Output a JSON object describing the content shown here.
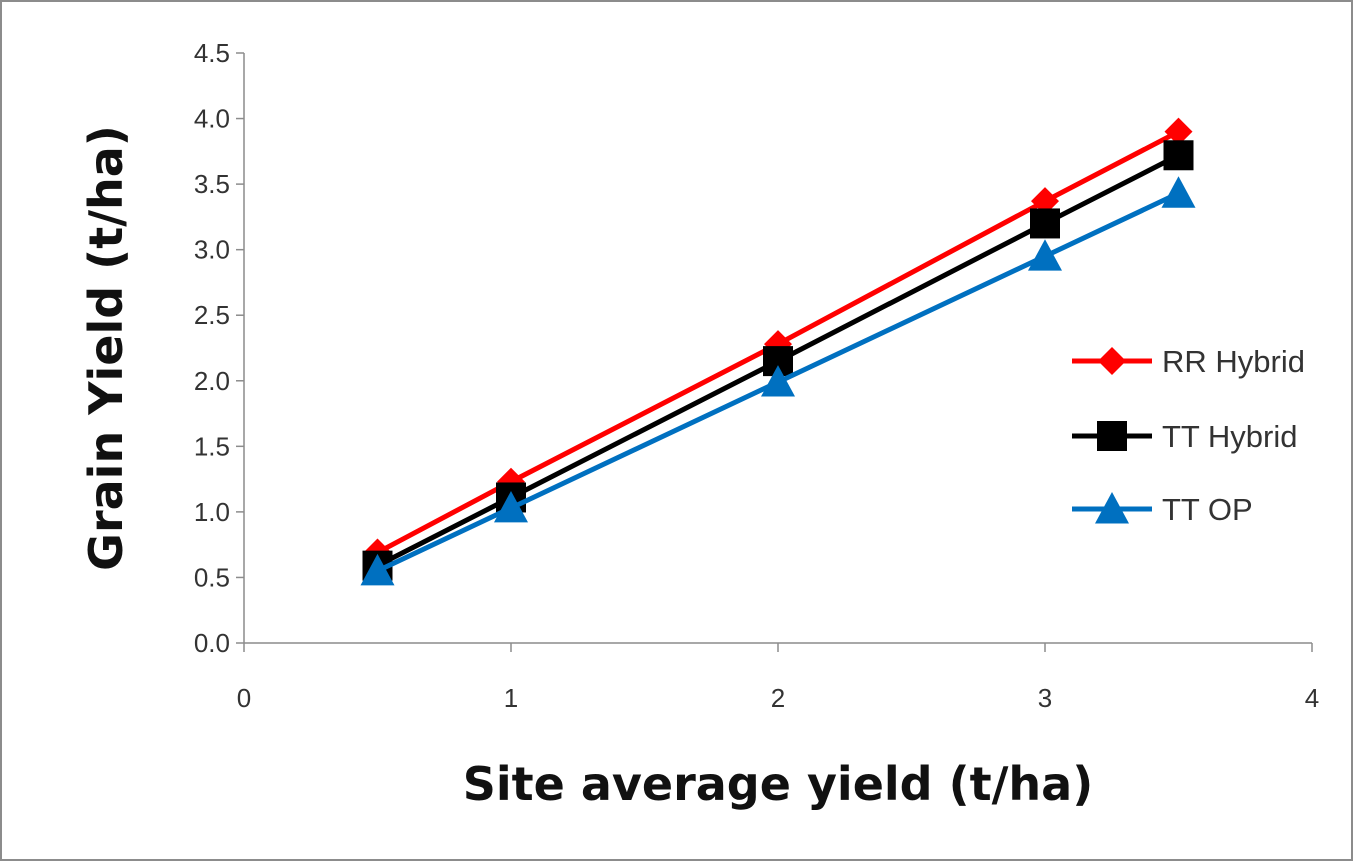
{
  "chart_data": {
    "type": "line",
    "title": "",
    "xlabel": "Site average yield (t/ha)",
    "ylabel": "Grain Yield (t/ha)",
    "xlim": [
      0,
      4
    ],
    "ylim": [
      0,
      4.5
    ],
    "x_ticks": [
      "0",
      "1",
      "2",
      "3",
      "4"
    ],
    "y_ticks": [
      "0.0",
      "0.5",
      "1.0",
      "1.5",
      "2.0",
      "2.5",
      "3.0",
      "3.5",
      "4.0",
      "4.5"
    ],
    "grid": false,
    "legend_position": "right",
    "series": [
      {
        "name": "RR Hybrid",
        "color": "#ff0000",
        "marker": "diamond",
        "x": [
          0.5,
          1,
          2,
          3,
          3.5
        ],
        "y": [
          0.69,
          1.23,
          2.28,
          3.37,
          3.9
        ]
      },
      {
        "name": "TT Hybrid",
        "color": "#000000",
        "marker": "square",
        "x": [
          0.5,
          1,
          2,
          3,
          3.5
        ],
        "y": [
          0.59,
          1.11,
          2.15,
          3.2,
          3.72
        ]
      },
      {
        "name": "TT OP",
        "color": "#0070c0",
        "marker": "triangle",
        "x": [
          0.5,
          1,
          2,
          3,
          3.5
        ],
        "y": [
          0.55,
          1.03,
          1.99,
          2.95,
          3.43
        ]
      }
    ]
  }
}
